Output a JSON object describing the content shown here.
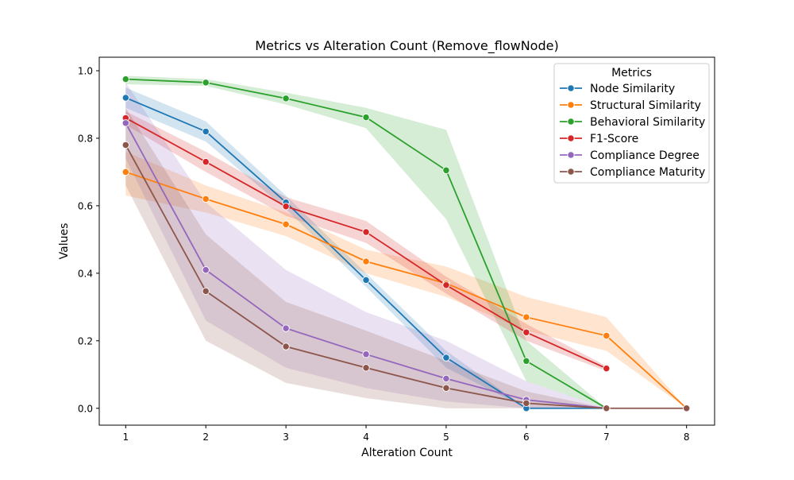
{
  "chart_data": {
    "type": "line",
    "title": "Metrics vs Alteration Count (Remove_flowNode)",
    "xlabel": "Alteration Count",
    "ylabel": "Values",
    "x": [
      1,
      2,
      3,
      4,
      5,
      6,
      7,
      8
    ],
    "xlim": [
      0.67,
      8.35
    ],
    "ylim": [
      -0.05,
      1.04
    ],
    "xticks": [
      "1",
      "2",
      "3",
      "4",
      "5",
      "6",
      "7",
      "8"
    ],
    "yticks": [
      "0.0",
      "0.2",
      "0.4",
      "0.6",
      "0.8",
      "1.0"
    ],
    "grid": false,
    "legend": {
      "title": "Metrics",
      "placement": "top-right"
    },
    "series": [
      {
        "name": "Node Similarity",
        "color": "#1f77b4",
        "x": [
          1,
          2,
          3,
          4,
          5,
          6,
          7
        ],
        "values": [
          0.92,
          0.82,
          0.61,
          0.38,
          0.15,
          0.0,
          0.0
        ],
        "ci_lower": [
          0.89,
          0.79,
          0.59,
          0.36,
          0.12,
          0.0,
          0.0
        ],
        "ci_upper": [
          0.95,
          0.85,
          0.63,
          0.4,
          0.17,
          0.0,
          0.0
        ]
      },
      {
        "name": "Structural Similarity",
        "color": "#ff7f0e",
        "x": [
          1,
          2,
          3,
          4,
          5,
          6,
          7,
          8
        ],
        "values": [
          0.7,
          0.62,
          0.545,
          0.435,
          0.37,
          0.27,
          0.215,
          0.0
        ],
        "ci_lower": [
          0.63,
          0.58,
          0.51,
          0.4,
          0.33,
          0.23,
          0.17,
          0.0
        ],
        "ci_upper": [
          0.76,
          0.66,
          0.58,
          0.47,
          0.42,
          0.33,
          0.27,
          0.0
        ]
      },
      {
        "name": "Behavioral Similarity",
        "color": "#2ca02c",
        "x": [
          1,
          2,
          3,
          4,
          5,
          6,
          7
        ],
        "values": [
          0.975,
          0.965,
          0.918,
          0.862,
          0.705,
          0.14,
          0.0
        ],
        "ci_lower": [
          0.96,
          0.955,
          0.9,
          0.83,
          0.56,
          0.08,
          0.0
        ],
        "ci_upper": [
          0.985,
          0.975,
          0.935,
          0.89,
          0.825,
          0.2,
          0.0
        ]
      },
      {
        "name": "F1-Score",
        "color": "#d62728",
        "x": [
          1,
          2,
          3,
          4,
          5,
          6,
          7
        ],
        "values": [
          0.86,
          0.73,
          0.598,
          0.522,
          0.365,
          0.225,
          0.118
        ],
        "ci_lower": [
          0.84,
          0.7,
          0.57,
          0.49,
          0.34,
          0.2,
          0.11
        ],
        "ci_upper": [
          0.88,
          0.76,
          0.625,
          0.555,
          0.39,
          0.25,
          0.125
        ]
      },
      {
        "name": "Compliance Degree",
        "color": "#9467bd",
        "x": [
          1,
          2,
          3,
          4,
          5,
          6,
          7
        ],
        "values": [
          0.845,
          0.41,
          0.237,
          0.16,
          0.088,
          0.025,
          0.0
        ],
        "ci_lower": [
          0.74,
          0.26,
          0.12,
          0.06,
          0.02,
          0.0,
          0.0
        ],
        "ci_upper": [
          0.965,
          0.61,
          0.41,
          0.285,
          0.2,
          0.08,
          0.0
        ]
      },
      {
        "name": "Compliance Maturity",
        "color": "#8c564b",
        "x": [
          1,
          2,
          3,
          4,
          5,
          6,
          7,
          8
        ],
        "values": [
          0.78,
          0.347,
          0.183,
          0.12,
          0.06,
          0.015,
          0.0,
          0.0
        ],
        "ci_lower": [
          0.66,
          0.2,
          0.075,
          0.03,
          0.0,
          0.0,
          0.0,
          0.0
        ],
        "ci_upper": [
          0.89,
          0.515,
          0.315,
          0.23,
          0.14,
          0.05,
          0.0,
          0.0
        ]
      }
    ]
  }
}
